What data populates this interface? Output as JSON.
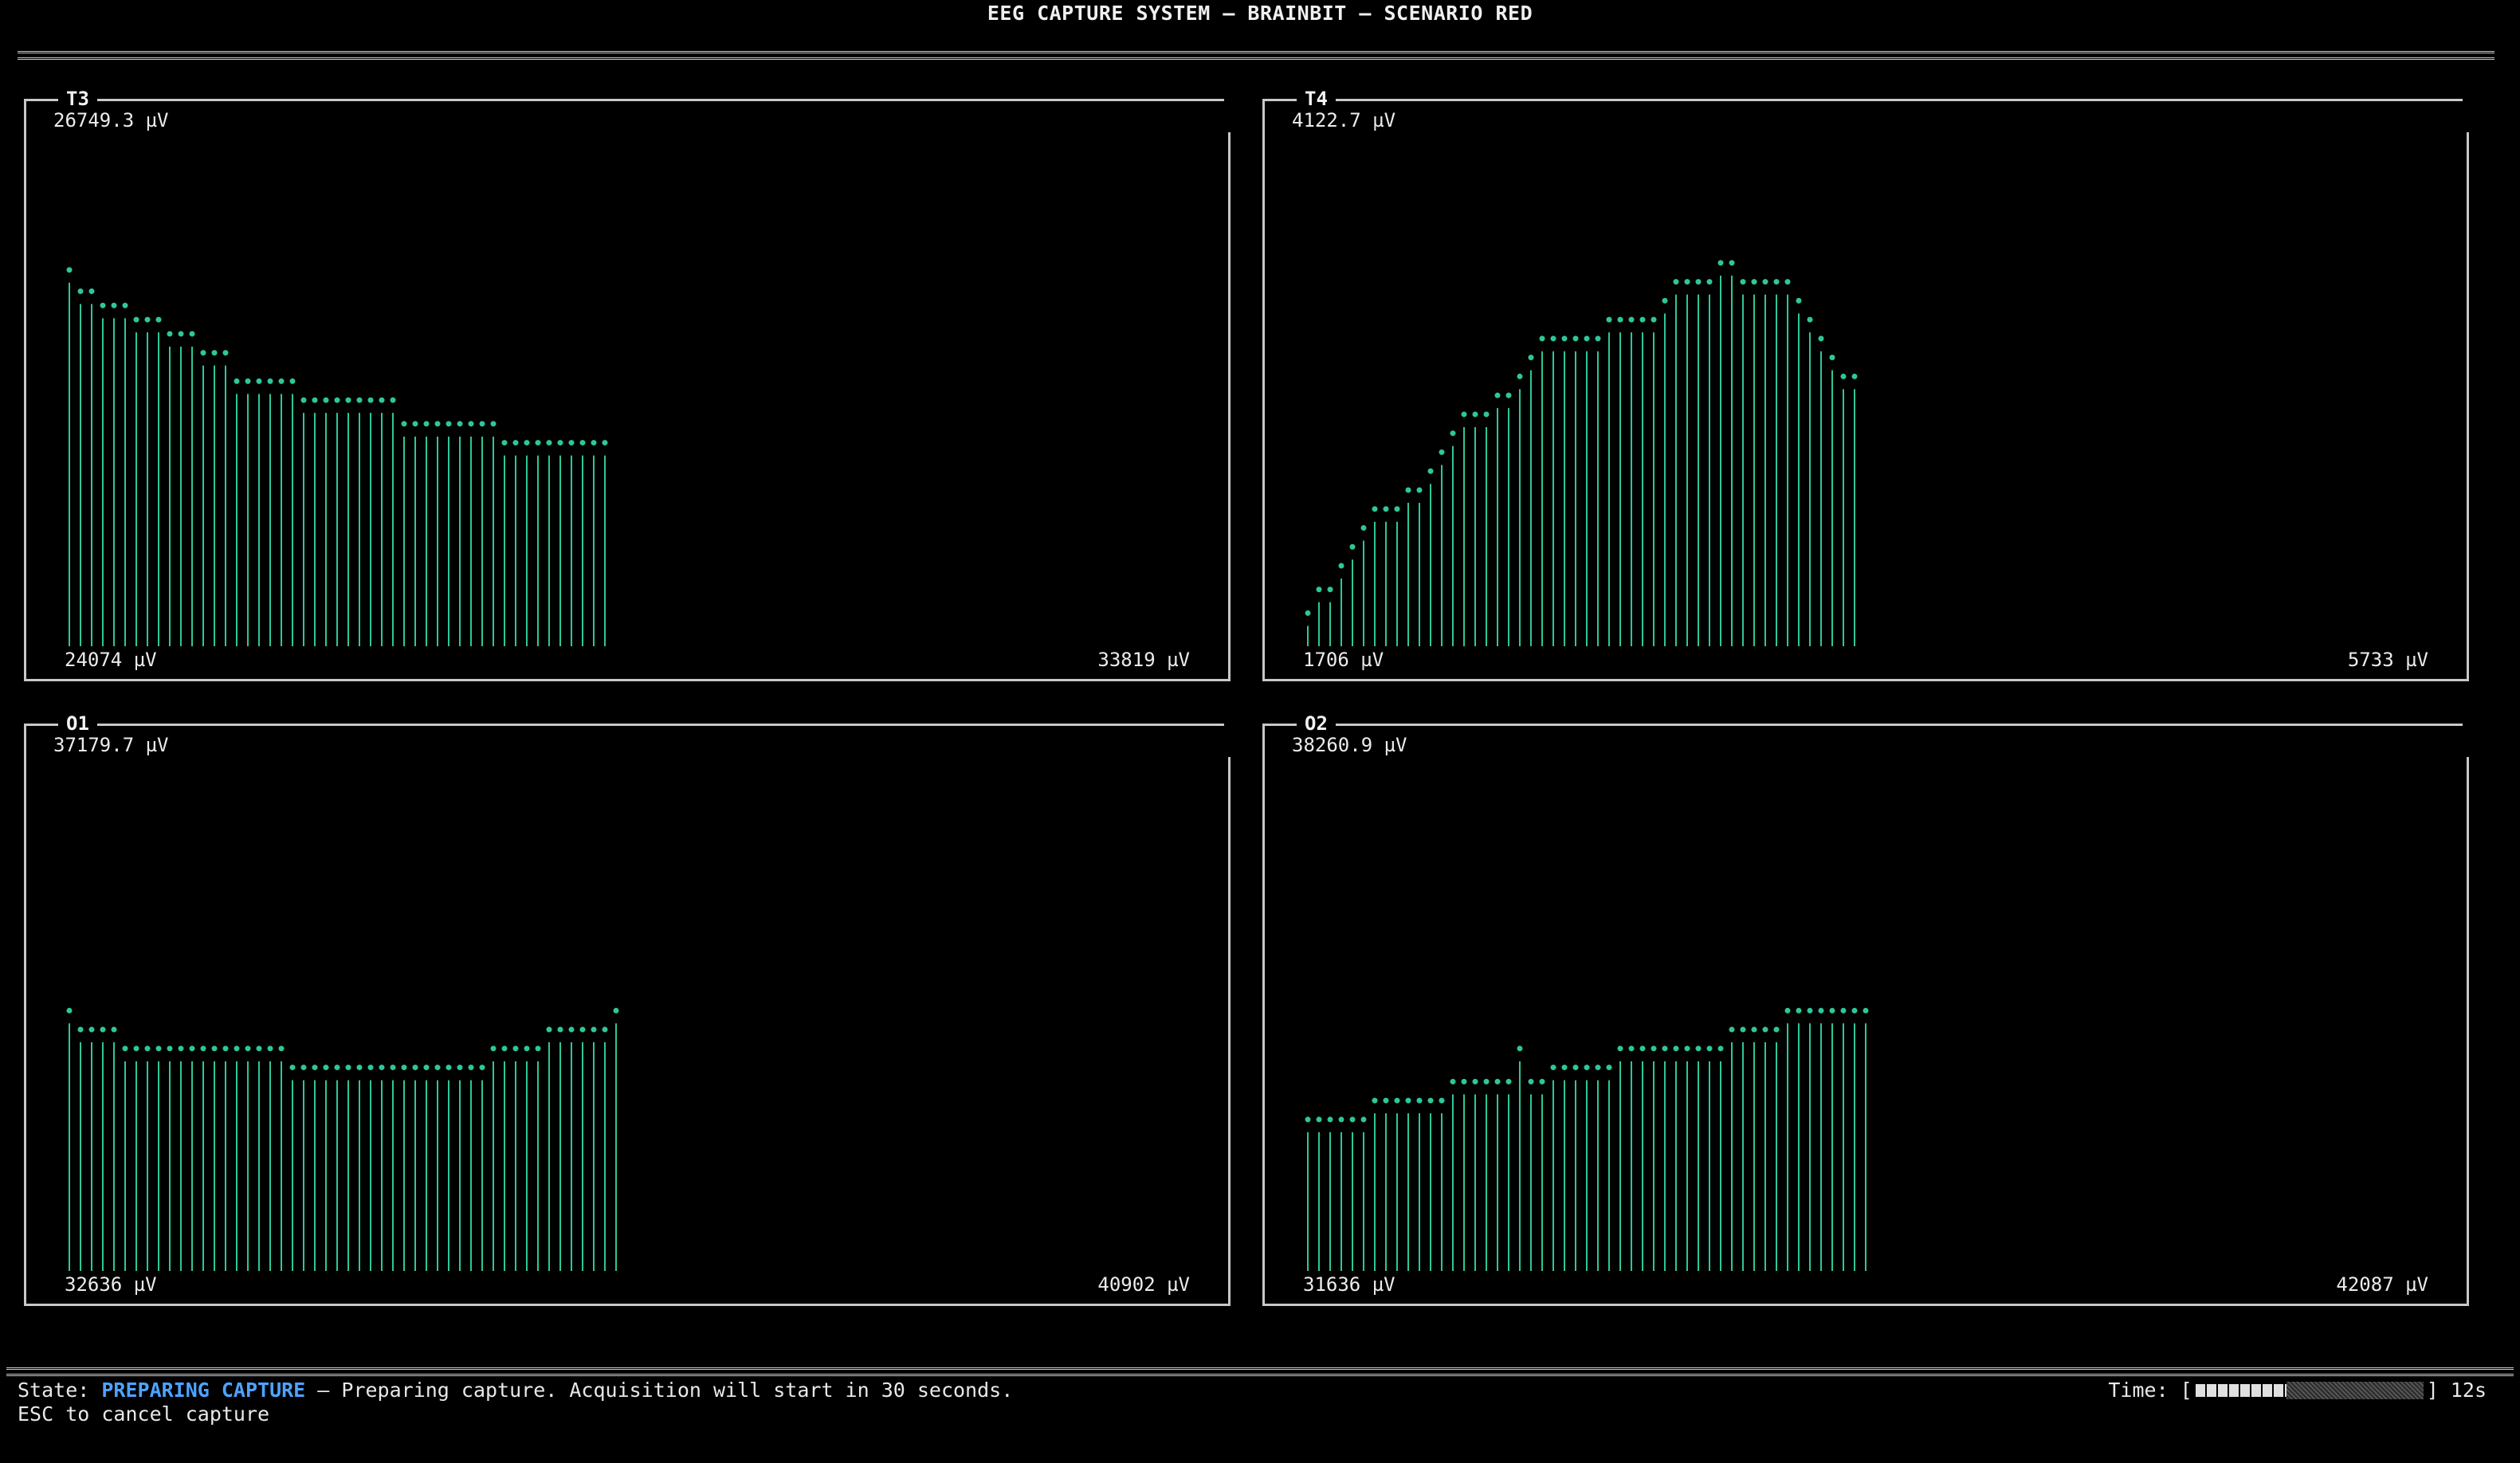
{
  "header": {
    "title": "EEG CAPTURE SYSTEM — BRAINBIT — SCENARIO RED"
  },
  "colors": {
    "background": "#000000",
    "signal": "#2ec79a",
    "border": "#c8c8c8",
    "state_accent": "#4da3ff"
  },
  "panels": [
    {
      "label": "T3",
      "peak_label": "26749.3 µV",
      "range_min": "24074 µV",
      "range_max": "33819 µV",
      "values": [
        0.795,
        0.75,
        0.75,
        0.72,
        0.72,
        0.72,
        0.69,
        0.69,
        0.69,
        0.66,
        0.66,
        0.66,
        0.62,
        0.62,
        0.62,
        0.56,
        0.56,
        0.56,
        0.56,
        0.56,
        0.56,
        0.52,
        0.52,
        0.52,
        0.52,
        0.52,
        0.52,
        0.52,
        0.52,
        0.52,
        0.47,
        0.47,
        0.47,
        0.47,
        0.47,
        0.47,
        0.47,
        0.47,
        0.47,
        0.43,
        0.43,
        0.43,
        0.43,
        0.43,
        0.43,
        0.43,
        0.43,
        0.43,
        0.43
      ]
    },
    {
      "label": "T4",
      "peak_label": "4122.7 µV",
      "range_min": "1706 µV",
      "range_max": "5733 µV",
      "values": [
        0.07,
        0.12,
        0.12,
        0.17,
        0.21,
        0.25,
        0.29,
        0.29,
        0.29,
        0.33,
        0.33,
        0.37,
        0.41,
        0.45,
        0.49,
        0.49,
        0.49,
        0.53,
        0.53,
        0.57,
        0.61,
        0.65,
        0.65,
        0.65,
        0.65,
        0.65,
        0.65,
        0.69,
        0.69,
        0.69,
        0.69,
        0.69,
        0.73,
        0.77,
        0.77,
        0.77,
        0.77,
        0.81,
        0.81,
        0.77,
        0.77,
        0.77,
        0.77,
        0.77,
        0.73,
        0.69,
        0.65,
        0.61,
        0.57,
        0.57
      ]
    },
    {
      "label": "O1",
      "peak_label": "37179.7 µV",
      "range_min": "32636 µV",
      "range_max": "40902 µV",
      "values": [
        0.55,
        0.51,
        0.51,
        0.51,
        0.51,
        0.47,
        0.47,
        0.47,
        0.47,
        0.47,
        0.47,
        0.47,
        0.47,
        0.47,
        0.47,
        0.47,
        0.47,
        0.47,
        0.47,
        0.47,
        0.43,
        0.43,
        0.43,
        0.43,
        0.43,
        0.43,
        0.43,
        0.43,
        0.43,
        0.43,
        0.43,
        0.43,
        0.43,
        0.43,
        0.43,
        0.43,
        0.43,
        0.43,
        0.47,
        0.47,
        0.47,
        0.47,
        0.47,
        0.51,
        0.51,
        0.51,
        0.51,
        0.51,
        0.51,
        0.55
      ]
    },
    {
      "label": "O2",
      "peak_label": "38260.9 µV",
      "range_min": "31636 µV",
      "range_max": "42087 µV",
      "values": [
        0.32,
        0.32,
        0.32,
        0.32,
        0.32,
        0.32,
        0.36,
        0.36,
        0.36,
        0.36,
        0.36,
        0.36,
        0.36,
        0.4,
        0.4,
        0.4,
        0.4,
        0.4,
        0.4,
        0.47,
        0.4,
        0.4,
        0.43,
        0.43,
        0.43,
        0.43,
        0.43,
        0.43,
        0.47,
        0.47,
        0.47,
        0.47,
        0.47,
        0.47,
        0.47,
        0.47,
        0.47,
        0.47,
        0.51,
        0.51,
        0.51,
        0.51,
        0.51,
        0.55,
        0.55,
        0.55,
        0.55,
        0.55,
        0.55,
        0.55,
        0.55
      ]
    }
  ],
  "status": {
    "state_label": "State: ",
    "state_value": "PREPARING CAPTURE",
    "state_message": " — Preparing capture. Acquisition will start in 30 seconds.",
    "hint": "ESC to cancel capture"
  },
  "timer": {
    "label": "Time: [",
    "close": "] ",
    "seconds": "12s",
    "progress": 0.4
  }
}
